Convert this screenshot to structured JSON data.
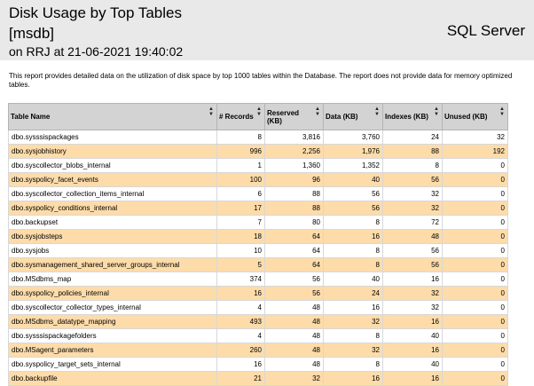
{
  "report": {
    "title": "Disk Usage by Top Tables",
    "database": "[msdb]",
    "generated_on": "on RRJ at 21-06-2021 19:40:02",
    "server_label": "SQL Server",
    "description": "This report provides detailed data on the utilization of disk space by top 1000 tables within the Database. The report does not provide data for memory optimized tables."
  },
  "table": {
    "columns": [
      "Table Name",
      "# Records",
      "Reserved (KB)",
      "Data (KB)",
      "Indexes (KB)",
      "Unused (KB)"
    ],
    "rows": [
      [
        "dbo.sysssispackages",
        "8",
        "3,816",
        "3,760",
        "24",
        "32"
      ],
      [
        "dbo.sysjobhistory",
        "996",
        "2,256",
        "1,976",
        "88",
        "192"
      ],
      [
        "dbo.syscollector_blobs_internal",
        "1",
        "1,360",
        "1,352",
        "8",
        "0"
      ],
      [
        "dbo.syspolicy_facet_events",
        "100",
        "96",
        "40",
        "56",
        "0"
      ],
      [
        "dbo.syscollector_collection_items_internal",
        "6",
        "88",
        "56",
        "32",
        "0"
      ],
      [
        "dbo.syspolicy_conditions_internal",
        "17",
        "88",
        "56",
        "32",
        "0"
      ],
      [
        "dbo.backupset",
        "7",
        "80",
        "8",
        "72",
        "0"
      ],
      [
        "dbo.sysjobsteps",
        "18",
        "64",
        "16",
        "48",
        "0"
      ],
      [
        "dbo.sysjobs",
        "10",
        "64",
        "8",
        "56",
        "0"
      ],
      [
        "dbo.sysmanagement_shared_server_groups_internal",
        "5",
        "64",
        "8",
        "56",
        "0"
      ],
      [
        "dbo.MSdbms_map",
        "374",
        "56",
        "40",
        "16",
        "0"
      ],
      [
        "dbo.syspolicy_policies_internal",
        "16",
        "56",
        "24",
        "32",
        "0"
      ],
      [
        "dbo.syscollector_collector_types_internal",
        "4",
        "48",
        "16",
        "32",
        "0"
      ],
      [
        "dbo.MSdbms_datatype_mapping",
        "493",
        "48",
        "32",
        "16",
        "0"
      ],
      [
        "dbo.sysssispackagefolders",
        "4",
        "48",
        "8",
        "40",
        "0"
      ],
      [
        "dbo.MSagent_parameters",
        "260",
        "48",
        "32",
        "16",
        "0"
      ],
      [
        "dbo.syspolicy_target_sets_internal",
        "16",
        "48",
        "8",
        "40",
        "0"
      ],
      [
        "dbo.backupfile",
        "21",
        "32",
        "16",
        "16",
        "0"
      ]
    ]
  },
  "colors": {
    "header_bg": "#e9e9e9",
    "column_header_bg": "#d3d3d3",
    "alt_row_bg": "#fddcaa"
  },
  "icons": {
    "sort": "sort-updown-icon"
  }
}
